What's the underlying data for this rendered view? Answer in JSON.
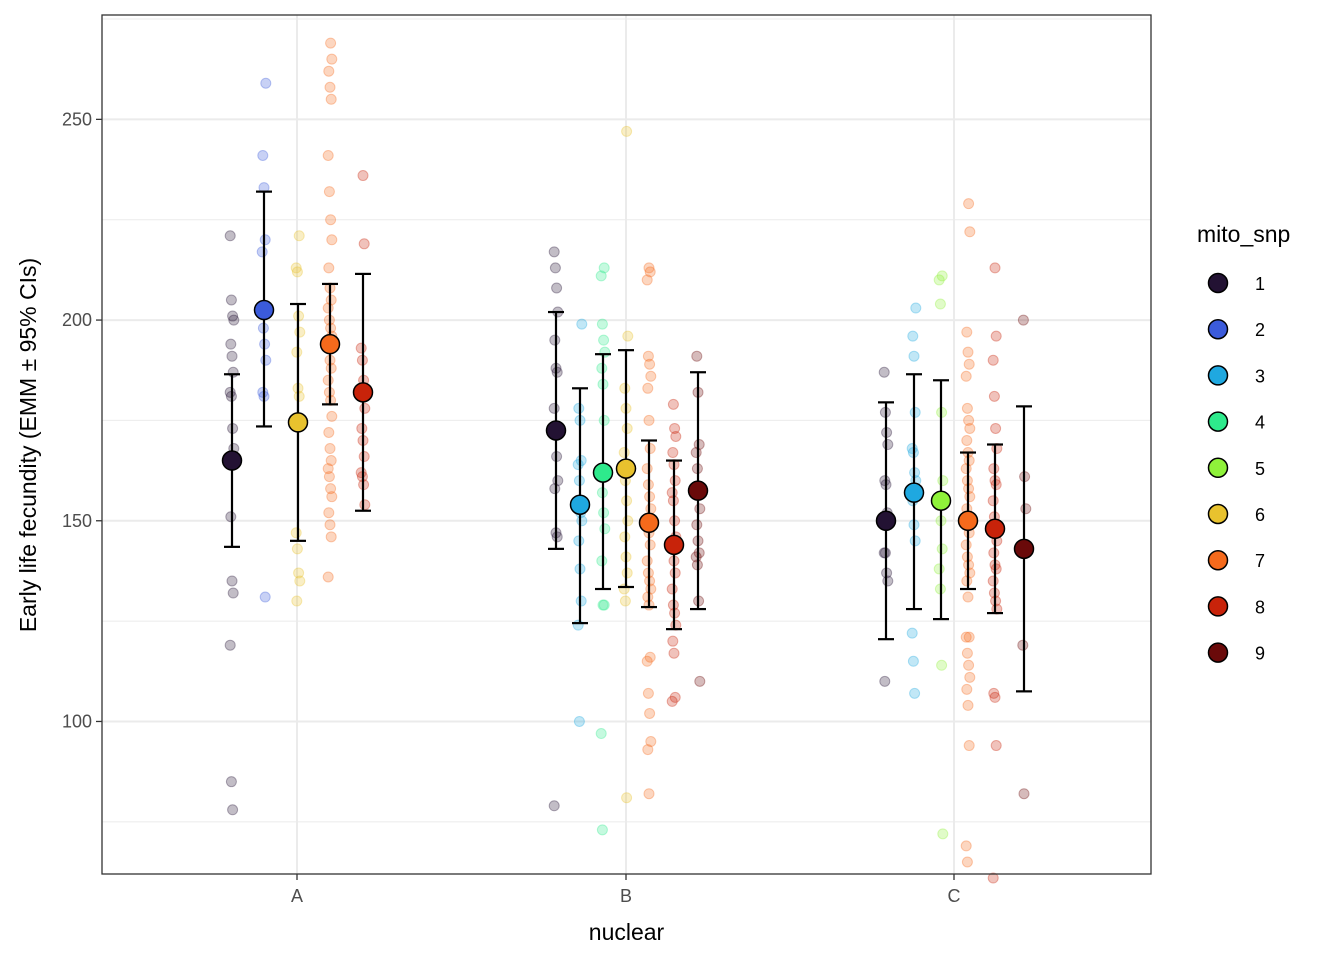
{
  "chart_data": {
    "type": "scatter",
    "title": "",
    "xlabel": "nuclear",
    "ylabel": "Early life fecundity (EMM ± 95% CIs)",
    "categories": [
      "A",
      "B",
      "C"
    ],
    "ylim": [
      62,
      276
    ],
    "yticks": [
      100,
      150,
      200,
      250
    ],
    "grid": true,
    "legend": {
      "title": "mito_snp",
      "placement": "right",
      "entries": [
        {
          "label": "1",
          "color": "#231233"
        },
        {
          "label": "2",
          "color": "#3B5BDB"
        },
        {
          "label": "3",
          "color": "#1FA8E0"
        },
        {
          "label": "4",
          "color": "#2EEA8C"
        },
        {
          "label": "5",
          "color": "#8FF23A"
        },
        {
          "label": "6",
          "color": "#E8C22E"
        },
        {
          "label": "7",
          "color": "#F56A1C"
        },
        {
          "label": "8",
          "color": "#C8230A"
        },
        {
          "label": "9",
          "color": "#6A0A0A"
        }
      ]
    },
    "groups": [
      {
        "nuclear": "A",
        "mito_snp": "1",
        "emm": 165,
        "lower": 143.5,
        "upper": 186.5,
        "raw": [
          221,
          205,
          201,
          200,
          194,
          191,
          187,
          182,
          181,
          173,
          168,
          151,
          135,
          132,
          119,
          85,
          78
        ]
      },
      {
        "nuclear": "A",
        "mito_snp": "2",
        "emm": 202.5,
        "lower": 173.5,
        "upper": 232,
        "raw": [
          259,
          241,
          233,
          220,
          217,
          198,
          194,
          190,
          182,
          181,
          131
        ]
      },
      {
        "nuclear": "A",
        "mito_snp": "6",
        "emm": 174.5,
        "lower": 145,
        "upper": 204,
        "raw": [
          221,
          213,
          212,
          201,
          197,
          192,
          183,
          181,
          147,
          143,
          137,
          135,
          130
        ]
      },
      {
        "nuclear": "A",
        "mito_snp": "7",
        "emm": 194,
        "lower": 179,
        "upper": 209,
        "raw": [
          269,
          265,
          262,
          258,
          255,
          241,
          232,
          225,
          220,
          213,
          208,
          205,
          203,
          200,
          198,
          196,
          193,
          190,
          188,
          185,
          182,
          180,
          176,
          172,
          168,
          165,
          163,
          161,
          158,
          156,
          152,
          149,
          146,
          136
        ]
      },
      {
        "nuclear": "A",
        "mito_snp": "8",
        "emm": 182,
        "lower": 152.5,
        "upper": 211.5,
        "raw": [
          236,
          219,
          193,
          190,
          185,
          178,
          173,
          170,
          166,
          162,
          161,
          159,
          154
        ]
      },
      {
        "nuclear": "B",
        "mito_snp": "1",
        "emm": 172.5,
        "lower": 143,
        "upper": 202,
        "raw": [
          217,
          213,
          208,
          202,
          195,
          188,
          187,
          178,
          173,
          166,
          160,
          158,
          147,
          146,
          79
        ]
      },
      {
        "nuclear": "B",
        "mito_snp": "3",
        "emm": 154,
        "lower": 124.5,
        "upper": 183,
        "raw": [
          199,
          178,
          175,
          165,
          164,
          160,
          152,
          150,
          145,
          138,
          130,
          124,
          100
        ]
      },
      {
        "nuclear": "B",
        "mito_snp": "4",
        "emm": 162,
        "lower": 133,
        "upper": 191.5,
        "raw": [
          213,
          211,
          199,
          195,
          192,
          188,
          184,
          175,
          163,
          157,
          152,
          148,
          140,
          129,
          129,
          97,
          73
        ]
      },
      {
        "nuclear": "B",
        "mito_snp": "6",
        "emm": 163,
        "lower": 133.5,
        "upper": 192.5,
        "raw": [
          247,
          196,
          183,
          178,
          173,
          167,
          160,
          155,
          150,
          146,
          141,
          137,
          133,
          130,
          81
        ]
      },
      {
        "nuclear": "B",
        "mito_snp": "7",
        "emm": 149.5,
        "lower": 128.5,
        "upper": 170,
        "raw": [
          213,
          212,
          210,
          191,
          189,
          186,
          183,
          175,
          168,
          163,
          159,
          156,
          153,
          150,
          147,
          144,
          140,
          137,
          135,
          133,
          131,
          129,
          116,
          115,
          107,
          102,
          95,
          93,
          82
        ]
      },
      {
        "nuclear": "B",
        "mito_snp": "8",
        "emm": 144,
        "lower": 123,
        "upper": 165,
        "raw": [
          179,
          173,
          171,
          167,
          164,
          160,
          157,
          155,
          150,
          146,
          143,
          140,
          137,
          133,
          129,
          127,
          124,
          120,
          117,
          106,
          105
        ]
      },
      {
        "nuclear": "B",
        "mito_snp": "9",
        "emm": 157.5,
        "lower": 128,
        "upper": 187,
        "raw": [
          191,
          182,
          169,
          167,
          163,
          157,
          153,
          149,
          145,
          142,
          141,
          139,
          130,
          110
        ]
      },
      {
        "nuclear": "C",
        "mito_snp": "1",
        "emm": 150,
        "lower": 120.5,
        "upper": 179.5,
        "raw": [
          187,
          177,
          172,
          169,
          160,
          159,
          152,
          142,
          142,
          137,
          135,
          110
        ]
      },
      {
        "nuclear": "C",
        "mito_snp": "3",
        "emm": 157,
        "lower": 128,
        "upper": 186.5,
        "raw": [
          203,
          196,
          191,
          177,
          168,
          167,
          162,
          160,
          155,
          149,
          145,
          122,
          115,
          107
        ]
      },
      {
        "nuclear": "C",
        "mito_snp": "5",
        "emm": 155,
        "lower": 125.5,
        "upper": 185,
        "raw": [
          211,
          210,
          204,
          177,
          160,
          156,
          150,
          143,
          138,
          133,
          114,
          72
        ]
      },
      {
        "nuclear": "C",
        "mito_snp": "7",
        "emm": 150,
        "lower": 133,
        "upper": 167,
        "raw": [
          229,
          222,
          197,
          192,
          189,
          186,
          178,
          175,
          173,
          170,
          167,
          165,
          163,
          160,
          158,
          156,
          153,
          150,
          147,
          144,
          141,
          139,
          137,
          135,
          131,
          121,
          121,
          117,
          114,
          111,
          108,
          104,
          94,
          69,
          65
        ]
      },
      {
        "nuclear": "C",
        "mito_snp": "8",
        "emm": 148,
        "lower": 127,
        "upper": 169,
        "raw": [
          213,
          196,
          190,
          181,
          173,
          168,
          163,
          160,
          159,
          155,
          151,
          148,
          145,
          142,
          139,
          138,
          135,
          132,
          130,
          128,
          107,
          106,
          94,
          61
        ]
      },
      {
        "nuclear": "C",
        "mito_snp": "9",
        "emm": 143,
        "lower": 107.5,
        "upper": 178.5,
        "raw": [
          200,
          161,
          153,
          119,
          82
        ]
      }
    ]
  }
}
